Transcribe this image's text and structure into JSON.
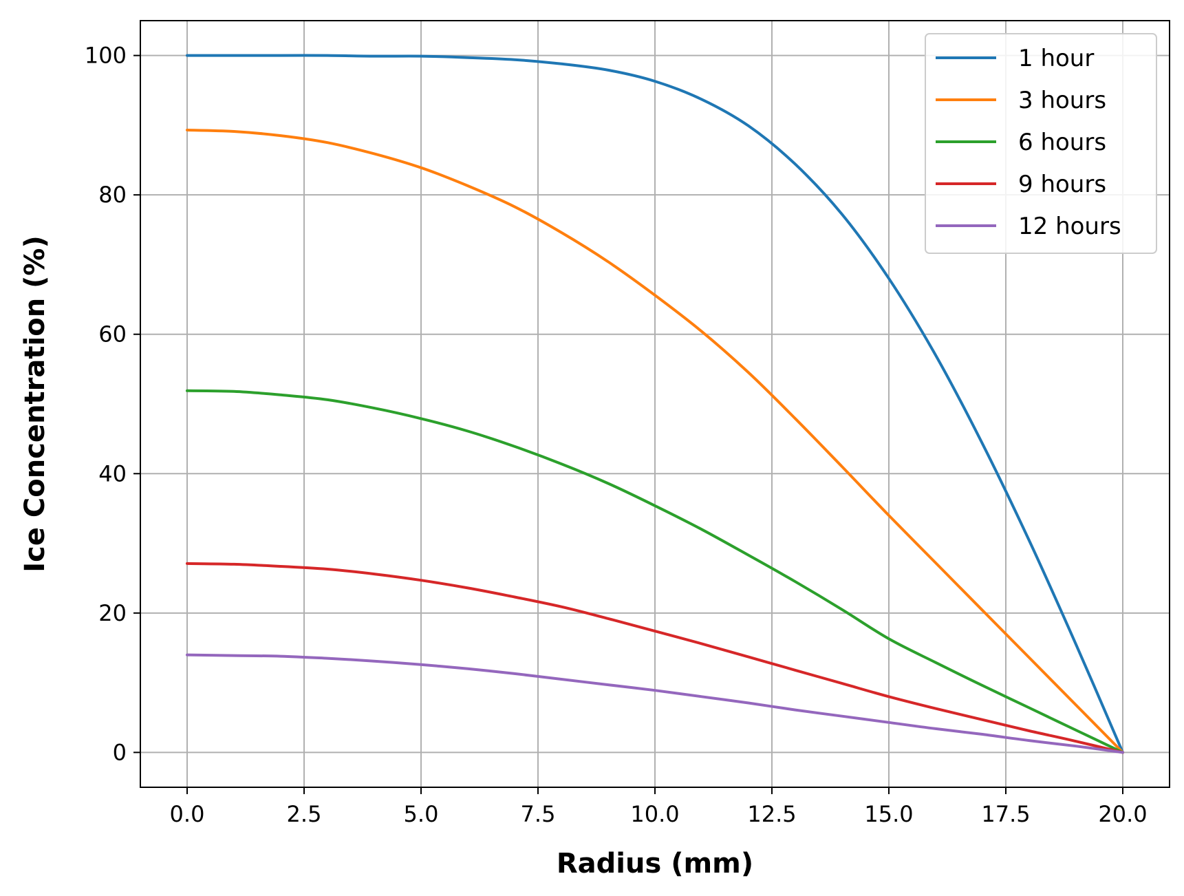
{
  "chart_data": {
    "type": "line",
    "title": "",
    "xlabel": "Radius (mm)",
    "ylabel": "Ice Concentration (%)",
    "xlim": [
      -1,
      21
    ],
    "ylim": [
      -5,
      105
    ],
    "xticks": [
      0,
      2.5,
      5,
      7.5,
      10,
      12.5,
      15,
      17.5,
      20
    ],
    "xtick_labels": [
      "0.0",
      "2.5",
      "5.0",
      "7.5",
      "10.0",
      "12.5",
      "15.0",
      "17.5",
      "20.0"
    ],
    "yticks": [
      0,
      20,
      40,
      60,
      80,
      100
    ],
    "ytick_labels": [
      "0",
      "20",
      "40",
      "60",
      "80",
      "100"
    ],
    "grid": true,
    "legend_position": "top-right",
    "x": [
      0,
      1,
      2,
      3,
      4,
      5,
      6,
      7,
      8,
      9,
      10,
      11,
      12,
      13,
      14,
      15,
      16,
      17,
      18,
      19,
      20
    ],
    "series": [
      {
        "name": "1 hour",
        "color": "#1f77b4",
        "values": [
          100,
          100,
          100,
          100,
          99.9,
          99.9,
          99.7,
          99.4,
          98.8,
          97.9,
          96.3,
          93.7,
          89.9,
          84.4,
          77.2,
          68.0,
          57.0,
          44.3,
          30.4,
          15.5,
          0
        ]
      },
      {
        "name": "3 hours",
        "color": "#ff7f0e",
        "values": [
          89.3,
          89.1,
          88.5,
          87.5,
          85.9,
          83.9,
          81.3,
          78.3,
          74.6,
          70.4,
          65.6,
          60.4,
          54.5,
          47.9,
          41.0,
          34.0,
          27.2,
          20.4,
          13.6,
          6.8,
          0
        ]
      },
      {
        "name": "6 hours",
        "color": "#2ca02c",
        "values": [
          51.9,
          51.8,
          51.3,
          50.6,
          49.4,
          47.9,
          46.1,
          43.9,
          41.4,
          38.6,
          35.4,
          32.0,
          28.3,
          24.5,
          20.5,
          16.3,
          12.9,
          9.6,
          6.4,
          3.2,
          0
        ]
      },
      {
        "name": "9 hours",
        "color": "#d62728",
        "values": [
          27.1,
          27.0,
          26.7,
          26.3,
          25.6,
          24.7,
          23.6,
          22.3,
          20.9,
          19.2,
          17.4,
          15.6,
          13.7,
          11.8,
          9.9,
          8.0,
          6.3,
          4.7,
          3.1,
          1.6,
          0
        ]
      },
      {
        "name": "12 hours",
        "color": "#9467bd",
        "values": [
          14.0,
          13.9,
          13.8,
          13.5,
          13.1,
          12.6,
          12.0,
          11.3,
          10.5,
          9.7,
          8.9,
          8.0,
          7.1,
          6.1,
          5.2,
          4.3,
          3.4,
          2.6,
          1.7,
          0.9,
          0
        ]
      }
    ]
  }
}
